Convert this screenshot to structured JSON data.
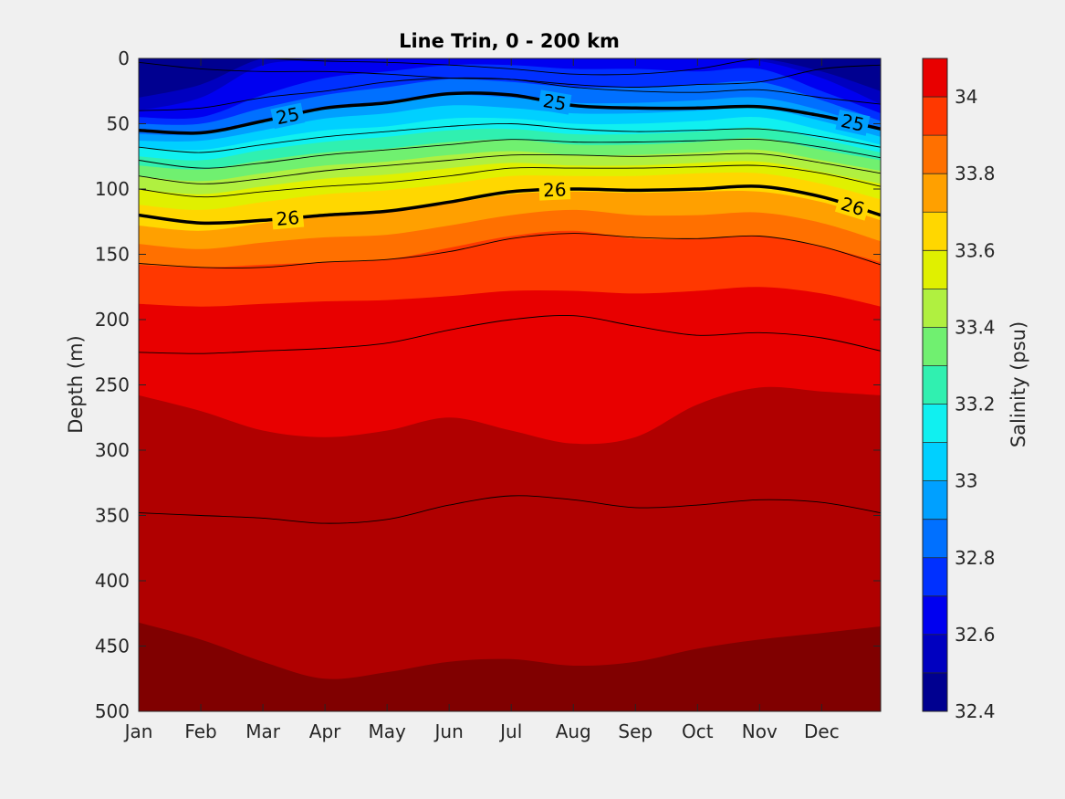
{
  "chart_data": {
    "type": "contourf",
    "title": "Line Trin, 0 - 200 km",
    "xlabel": "",
    "ylabel": "Depth (m)",
    "colorbar_label": "Salinity (psu)",
    "x_ticks": [
      "Jan",
      "Feb",
      "Mar",
      "Apr",
      "May",
      "Jun",
      "Jul",
      "Aug",
      "Sep",
      "Oct",
      "Nov",
      "Dec"
    ],
    "xlim": [
      1,
      12.95
    ],
    "ylim": [
      500,
      0
    ],
    "y_reversed": true,
    "y_ticks": [
      0,
      50,
      100,
      150,
      200,
      250,
      300,
      350,
      400,
      450,
      500
    ],
    "salinity_levels": [
      32.4,
      32.5,
      32.6,
      32.7,
      32.8,
      32.9,
      33.0,
      33.1,
      33.2,
      33.3,
      33.4,
      33.5,
      33.6,
      33.7,
      33.8,
      33.9,
      34.0,
      34.1
    ],
    "colorbar_ticks": [
      "32.4",
      "32.6",
      "32.8",
      "33",
      "33.2",
      "33.4",
      "33.6",
      "33.8",
      "34"
    ],
    "colorbar_colors": [
      "#000090",
      "#0000c0",
      "#0000f0",
      "#0030ff",
      "#0070ff",
      "#00a0ff",
      "#00d0ff",
      "#10f0f0",
      "#30f0b0",
      "#70f070",
      "#b0f040",
      "#e0f000",
      "#ffd700",
      "#ffa000",
      "#ff7000",
      "#ff3800",
      "#e80000",
      "#b00000"
    ],
    "grid": false,
    "legend": "colorbar-right",
    "salinity_band_boundaries": {
      "x_month": [
        1,
        2,
        3,
        4,
        5,
        6,
        7,
        8,
        9,
        10,
        11,
        12,
        12.95
      ],
      "depths_m": [
        {
          "level": 32.5,
          "depth": [
            30,
            20,
            0,
            0,
            0,
            0,
            0,
            0,
            0,
            0,
            0,
            10,
            25
          ]
        },
        {
          "level": 32.6,
          "depth": [
            40,
            30,
            5,
            2,
            0,
            0,
            0,
            0,
            0,
            0,
            2,
            15,
            35
          ]
        },
        {
          "level": 32.7,
          "depth": [
            45,
            45,
            28,
            15,
            10,
            5,
            5,
            8,
            8,
            10,
            8,
            25,
            42
          ]
        },
        {
          "level": 32.8,
          "depth": [
            50,
            50,
            38,
            28,
            22,
            16,
            18,
            22,
            22,
            20,
            18,
            32,
            48
          ]
        },
        {
          "level": 32.9,
          "depth": [
            58,
            58,
            48,
            38,
            34,
            28,
            30,
            34,
            34,
            32,
            30,
            40,
            55
          ]
        },
        {
          "level": 33.0,
          "depth": [
            63,
            63,
            55,
            46,
            42,
            36,
            38,
            42,
            42,
            40,
            38,
            48,
            60
          ]
        },
        {
          "level": 33.1,
          "depth": [
            68,
            70,
            62,
            55,
            52,
            46,
            46,
            50,
            50,
            48,
            45,
            55,
            66
          ]
        },
        {
          "level": 33.2,
          "depth": [
            75,
            78,
            70,
            64,
            60,
            55,
            54,
            58,
            58,
            56,
            53,
            62,
            72
          ]
        },
        {
          "level": 33.3,
          "depth": [
            82,
            85,
            78,
            72,
            69,
            64,
            62,
            66,
            66,
            64,
            61,
            70,
            78
          ]
        },
        {
          "level": 33.4,
          "depth": [
            90,
            94,
            88,
            82,
            79,
            74,
            71,
            74,
            74,
            72,
            70,
            78,
            86
          ]
        },
        {
          "level": 33.5,
          "depth": [
            100,
            104,
            98,
            92,
            89,
            84,
            80,
            82,
            82,
            80,
            79,
            87,
            96
          ]
        },
        {
          "level": 33.6,
          "depth": [
            112,
            116,
            110,
            104,
            101,
            96,
            90,
            90,
            90,
            88,
            88,
            96,
            108
          ]
        },
        {
          "level": 33.7,
          "depth": [
            128,
            132,
            126,
            120,
            117,
            111,
            104,
            102,
            103,
            102,
            102,
            110,
            124
          ]
        },
        {
          "level": 33.8,
          "depth": [
            142,
            146,
            141,
            137,
            135,
            128,
            120,
            116,
            120,
            120,
            118,
            126,
            140
          ]
        },
        {
          "level": 33.9,
          "depth": [
            158,
            160,
            158,
            156,
            154,
            145,
            136,
            132,
            138,
            138,
            136,
            144,
            156
          ]
        },
        {
          "level": 34.0,
          "depth": [
            188,
            190,
            188,
            186,
            185,
            182,
            178,
            178,
            180,
            178,
            175,
            180,
            190
          ]
        },
        {
          "level": 34.1,
          "depth": [
            258,
            270,
            285,
            290,
            285,
            275,
            285,
            295,
            290,
            265,
            252,
            255,
            258
          ]
        },
        {
          "level": 34.2,
          "depth": [
            432,
            445,
            462,
            475,
            470,
            462,
            460,
            465,
            462,
            452,
            445,
            440,
            435
          ]
        }
      ]
    },
    "sigma_contours": {
      "x_month": [
        1,
        2,
        3,
        4,
        5,
        6,
        7,
        8,
        9,
        10,
        11,
        12,
        12.95
      ],
      "lines": [
        {
          "depth": [
            0,
            0,
            0,
            2,
            3,
            5,
            8,
            12,
            12,
            8,
            0,
            0,
            0
          ]
        },
        {
          "depth": [
            3,
            8,
            10,
            10,
            12,
            15,
            16,
            20,
            22,
            20,
            18,
            8,
            5
          ]
        },
        {
          "depth": [
            40,
            38,
            30,
            25,
            18,
            15,
            16,
            22,
            25,
            26,
            24,
            30,
            35
          ]
        },
        {
          "label": "25",
          "depth": [
            55,
            57,
            48,
            38,
            34,
            27,
            28,
            36,
            38,
            38,
            37,
            44,
            54
          ]
        },
        {
          "depth": [
            68,
            72,
            66,
            60,
            56,
            52,
            50,
            54,
            56,
            55,
            54,
            60,
            68
          ]
        },
        {
          "depth": [
            78,
            84,
            80,
            74,
            70,
            66,
            62,
            64,
            64,
            63,
            62,
            68,
            76
          ]
        },
        {
          "depth": [
            90,
            96,
            92,
            86,
            82,
            78,
            74,
            74,
            75,
            74,
            73,
            80,
            88
          ]
        },
        {
          "depth": [
            100,
            106,
            102,
            98,
            95,
            90,
            84,
            84,
            84,
            83,
            82,
            88,
            98
          ]
        },
        {
          "label": "26",
          "depth": [
            120,
            126,
            124,
            120,
            117,
            110,
            102,
            100,
            101,
            100,
            98,
            106,
            120
          ]
        },
        {
          "depth": [
            157,
            160,
            160,
            156,
            154,
            148,
            138,
            134,
            137,
            138,
            136,
            144,
            158
          ]
        },
        {
          "depth": [
            225,
            226,
            224,
            222,
            218,
            208,
            200,
            197,
            205,
            212,
            210,
            214,
            224
          ]
        },
        {
          "depth": [
            348,
            350,
            352,
            356,
            353,
            342,
            335,
            338,
            344,
            342,
            338,
            340,
            348
          ]
        }
      ]
    }
  }
}
